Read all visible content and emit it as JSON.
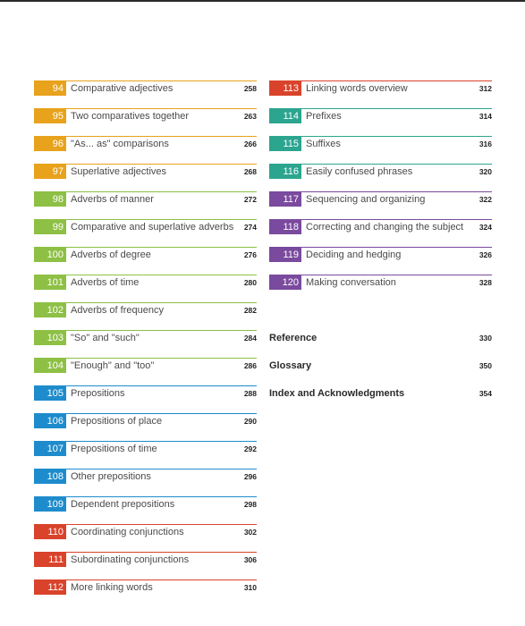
{
  "colors": {
    "orange": "#e8a21c",
    "green": "#8dc044",
    "blue": "#1e8ccc",
    "red": "#d9432b",
    "teal": "#2ca58f",
    "purple": "#7a4a9e"
  },
  "left_entries": [
    {
      "num": "94",
      "label": "Comparative adjectives",
      "page": "258",
      "color": "#e8a21c"
    },
    {
      "num": "95",
      "label": "Two comparatives together",
      "page": "263",
      "color": "#e8a21c"
    },
    {
      "num": "96",
      "label": "\"As... as\" comparisons",
      "page": "266",
      "color": "#e8a21c"
    },
    {
      "num": "97",
      "label": "Superlative adjectives",
      "page": "268",
      "color": "#e8a21c"
    },
    {
      "num": "98",
      "label": "Adverbs of manner",
      "page": "272",
      "color": "#8dc044"
    },
    {
      "num": "99",
      "label": "Comparative and superlative adverbs",
      "page": "274",
      "color": "#8dc044"
    },
    {
      "num": "100",
      "label": "Adverbs of degree",
      "page": "276",
      "color": "#8dc044"
    },
    {
      "num": "101",
      "label": "Adverbs of time",
      "page": "280",
      "color": "#8dc044"
    },
    {
      "num": "102",
      "label": "Adverbs of frequency",
      "page": "282",
      "color": "#8dc044"
    },
    {
      "num": "103",
      "label": "\"So\" and \"such\"",
      "page": "284",
      "color": "#8dc044"
    },
    {
      "num": "104",
      "label": "\"Enough\" and \"too\"",
      "page": "286",
      "color": "#8dc044"
    },
    {
      "num": "105",
      "label": "Prepositions",
      "page": "288",
      "color": "#1e8ccc"
    },
    {
      "num": "106",
      "label": "Prepositions of place",
      "page": "290",
      "color": "#1e8ccc"
    },
    {
      "num": "107",
      "label": "Prepositions of time",
      "page": "292",
      "color": "#1e8ccc"
    },
    {
      "num": "108",
      "label": "Other prepositions",
      "page": "296",
      "color": "#1e8ccc"
    },
    {
      "num": "109",
      "label": "Dependent prepositions",
      "page": "298",
      "color": "#1e8ccc"
    },
    {
      "num": "110",
      "label": "Coordinating conjunctions",
      "page": "302",
      "color": "#d9432b"
    },
    {
      "num": "111",
      "label": "Subordinating conjunctions",
      "page": "306",
      "color": "#d9432b"
    },
    {
      "num": "112",
      "label": "More linking words",
      "page": "310",
      "color": "#d9432b"
    }
  ],
  "right_entries": [
    {
      "num": "113",
      "label": "Linking words overview",
      "page": "312",
      "color": "#d9432b"
    },
    {
      "num": "114",
      "label": "Prefixes",
      "page": "314",
      "color": "#2ca58f"
    },
    {
      "num": "115",
      "label": "Suffixes",
      "page": "316",
      "color": "#2ca58f"
    },
    {
      "num": "116",
      "label": "Easily confused phrases",
      "page": "320",
      "color": "#2ca58f"
    },
    {
      "num": "117",
      "label": "Sequencing and organizing",
      "page": "322",
      "color": "#7a4a9e"
    },
    {
      "num": "118",
      "label": "Correcting and changing the subject",
      "page": "324",
      "color": "#7a4a9e"
    },
    {
      "num": "119",
      "label": "Deciding and hedging",
      "page": "326",
      "color": "#7a4a9e"
    },
    {
      "num": "120",
      "label": "Making conversation",
      "page": "328",
      "color": "#7a4a9e"
    }
  ],
  "reference_entries": [
    {
      "label": "Reference",
      "page": "330"
    },
    {
      "label": "Glossary",
      "page": "350"
    },
    {
      "label": "Index and Acknowledgments",
      "page": "354"
    }
  ]
}
